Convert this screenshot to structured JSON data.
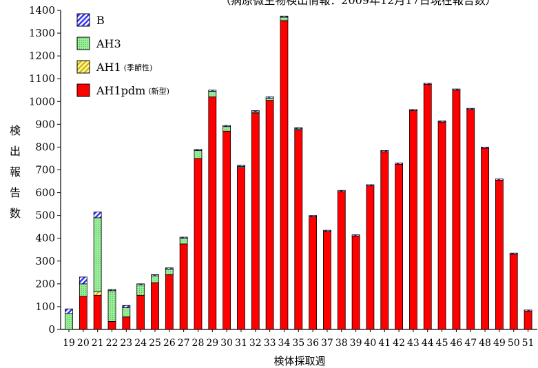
{
  "chart_data": {
    "type": "bar",
    "stacked": true,
    "title": "（病原微生物検出情報：2009年12月17日現在報告数）",
    "xlabel": "検体採取週",
    "ylabel": "検出報告数",
    "ylim": [
      0,
      1400
    ],
    "yticks": [
      0,
      100,
      200,
      300,
      400,
      500,
      600,
      700,
      800,
      900,
      1000,
      1100,
      1200,
      1300,
      1400
    ],
    "grid": false,
    "legend_position": "top-left",
    "categories": [
      "19",
      "20",
      "21",
      "22",
      "23",
      "24",
      "25",
      "26",
      "27",
      "28",
      "29",
      "30",
      "31",
      "32",
      "33",
      "34",
      "35",
      "36",
      "37",
      "38",
      "39",
      "40",
      "41",
      "42",
      "43",
      "44",
      "45",
      "46",
      "47",
      "48",
      "49",
      "50",
      "51"
    ],
    "series": [
      {
        "name": "AH1pdm",
        "note": "(新型)",
        "color": "#ff0000",
        "pattern": "solid",
        "values": [
          0,
          145,
          150,
          35,
          55,
          150,
          205,
          240,
          375,
          750,
          1020,
          870,
          710,
          950,
          1005,
          1355,
          875,
          495,
          430,
          605,
          410,
          630,
          780,
          725,
          960,
          1075,
          910,
          1050,
          965,
          795,
          655,
          330,
          80
        ]
      },
      {
        "name": "AH1",
        "note": "(季節性)",
        "color": "#ffd700",
        "pattern": "diagonal",
        "values": [
          0,
          0,
          15,
          0,
          0,
          0,
          0,
          0,
          0,
          0,
          0,
          0,
          0,
          0,
          0,
          0,
          0,
          0,
          0,
          0,
          0,
          0,
          0,
          0,
          0,
          0,
          0,
          0,
          0,
          0,
          0,
          0,
          0
        ]
      },
      {
        "name": "AH3",
        "color": "#99ee99",
        "pattern": "dots",
        "values": [
          70,
          55,
          325,
          135,
          40,
          45,
          30,
          25,
          25,
          35,
          25,
          20,
          5,
          5,
          10,
          15,
          5,
          0,
          0,
          0,
          0,
          0,
          0,
          0,
          0,
          0,
          0,
          0,
          0,
          0,
          0,
          0,
          0
        ]
      },
      {
        "name": "B",
        "color": "#3333ff",
        "pattern": "diagonal",
        "values": [
          20,
          30,
          25,
          5,
          10,
          5,
          5,
          5,
          5,
          5,
          5,
          5,
          5,
          5,
          5,
          5,
          5,
          5,
          5,
          5,
          5,
          5,
          5,
          5,
          5,
          5,
          5,
          5,
          5,
          5,
          5,
          5,
          5
        ]
      }
    ]
  }
}
